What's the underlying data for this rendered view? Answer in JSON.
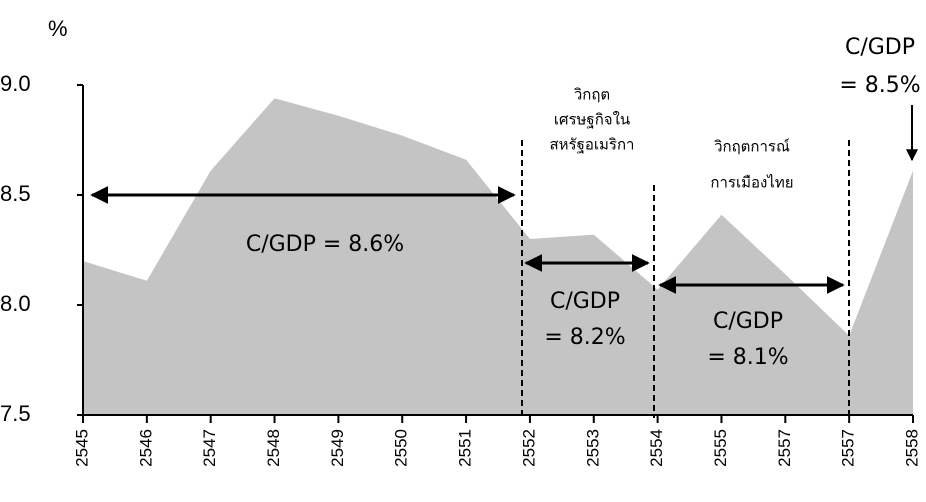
{
  "chart_data": {
    "type": "area",
    "ylabel": "%",
    "categories": [
      "2545",
      "2546",
      "2547",
      "2548",
      "2549",
      "2550",
      "2551",
      "2552",
      "2553",
      "2554",
      "2555",
      "2557",
      "2557",
      "2558"
    ],
    "values": [
      8.2,
      8.11,
      8.61,
      8.94,
      8.86,
      8.77,
      8.66,
      8.3,
      8.32,
      8.07,
      8.41,
      8.14,
      7.86,
      8.61
    ],
    "color": "#c4c4c4",
    "ylim": [
      7.5,
      9.0
    ],
    "yticks": [
      7.5,
      {
        "value": 8,
        "label": "8.0"
      },
      8.5,
      {
        "value": 9,
        "label": "9.0"
      }
    ],
    "annotations": [
      {
        "lines": [
          "C/GDP = 8.6%"
        ]
      },
      {
        "lines": [
          "C/GDP",
          "= 8.2%"
        ]
      },
      {
        "lines": [
          "C/GDP",
          "= 8.1%"
        ]
      },
      {
        "lines": [
          "C/GDP",
          "= 8.5%"
        ]
      },
      {
        "lines": [
          "วิกฤต",
          "เศรษฐกิจใน",
          "สหรัฐอเมริกา"
        ]
      },
      {
        "lines": [
          "วิกฤตการณ์",
          "การเมืองไทย"
        ]
      }
    ]
  }
}
